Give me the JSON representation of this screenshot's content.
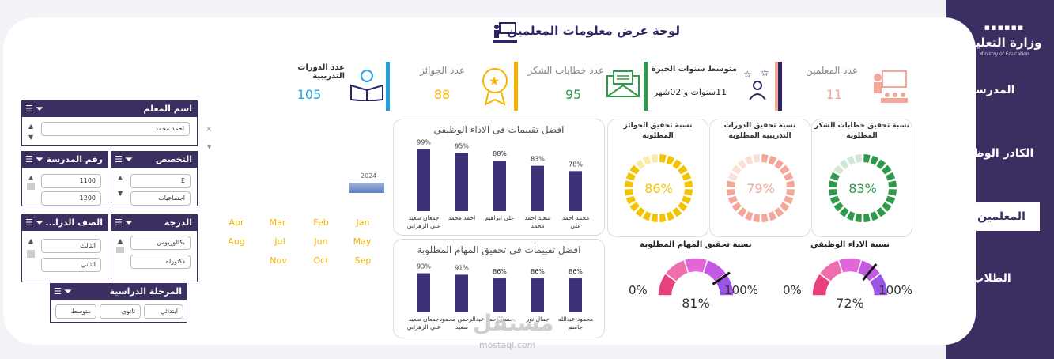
{
  "title": "لوحة عرض معلومات المعلمين",
  "nav": {
    "logo_ar": "وزارة التعليم",
    "logo_en": "Ministry of Education",
    "items": [
      "المدرسة",
      "الكادر الوظيفي",
      "المعلمين",
      "الطلاب"
    ],
    "active": "المعلمين"
  },
  "kpis": [
    {
      "label": "عدد المعلمين",
      "value": "11",
      "color": "#f4a698"
    },
    {
      "label": "متوسط سنوات الخبرة",
      "value": "11سنوات و 02شهر",
      "color": "#2d2560"
    },
    {
      "label": "عدد خطابات الشكر",
      "value": "95",
      "color": "#2e9b4b"
    },
    {
      "label": "عدد الجوائز",
      "value": "88",
      "color": "#f5b400"
    },
    {
      "label": "عدد الدورات التدريبية",
      "value": "105",
      "color": "#1fa3e0"
    }
  ],
  "rings": [
    {
      "title": "نسبة تحقيق خطابات الشكر المطلوبة",
      "value": "83%",
      "pct": 83,
      "color": "#2e9b4b",
      "light": "#cfe9d6"
    },
    {
      "title": "نسبة تحقيق الدورات التدريبية المطلوبة",
      "value": "79%",
      "pct": 79,
      "color": "#f4a698",
      "light": "#fbe0da"
    },
    {
      "title": "نسبة تحقيق الجوائز المطلوبة",
      "value": "86%",
      "pct": 86,
      "color": "#f5c200",
      "light": "#fbeaa8"
    }
  ],
  "gauges": [
    {
      "title": "نسبة الاداء الوظيفي",
      "value": "72%",
      "pct": 72,
      "min": "0%",
      "max": "100%"
    },
    {
      "title": "نسبة تحقيق المهام المطلوبة",
      "value": "81%",
      "pct": 81,
      "min": "0%",
      "max": "100%"
    }
  ],
  "chart_data": [
    {
      "type": "bar",
      "title": "افضل تقييمات فى الاداء الوظيفي",
      "categories": [
        "محمد احمد علي",
        "سعيد احمد محمد",
        "علي ابراهيم",
        "احمد محمد",
        "جمعان سعيد علي الزهراني"
      ],
      "values": [
        78,
        83,
        88,
        95,
        99
      ],
      "labels": [
        "78%",
        "83%",
        "88%",
        "95%",
        "99%"
      ]
    },
    {
      "type": "bar",
      "title": "افضل تقييمات فى تحقيق المهام المطلوبة",
      "categories": [
        "محمود عبدالله جاسم",
        "جمال نور الدين احمد",
        "حسن احمد سعيد",
        "عبدالرحمن محمود سعيد",
        "جمعان سعيد علي الزهراني"
      ],
      "values": [
        86,
        86,
        86,
        91,
        93
      ],
      "labels": [
        "86%",
        "86%",
        "86%",
        "91%",
        "93%"
      ]
    }
  ],
  "timeline": {
    "year": "2024",
    "months": [
      "Jan",
      "Feb",
      "Mar",
      "Apr",
      "May",
      "Jun",
      "Jul",
      "Aug",
      "Sep",
      "Oct",
      "Nov"
    ]
  },
  "slicers": {
    "teacher": {
      "title": "اسم المعلم",
      "options": [
        "احمد محمد"
      ]
    },
    "school_no": {
      "title": "رقم المدرسة",
      "options": [
        "1100",
        "1200"
      ]
    },
    "specialty": {
      "title": "التخصص",
      "options": [
        "E",
        "اجتماعيات"
      ]
    },
    "grade_class": {
      "title": "الصف الدرا...",
      "options": [
        "الثالث",
        "الثاني"
      ]
    },
    "degree": {
      "title": "الدرجة",
      "options": [
        "بكالوريوس",
        "دكتوراه"
      ]
    },
    "stage": {
      "title": "المرحلة الدراسية",
      "options": [
        "ابتدائي",
        "ثانوي",
        "متوسط"
      ]
    }
  },
  "watermark": {
    "ar": "مستقل",
    "en": "mostaql.com"
  }
}
